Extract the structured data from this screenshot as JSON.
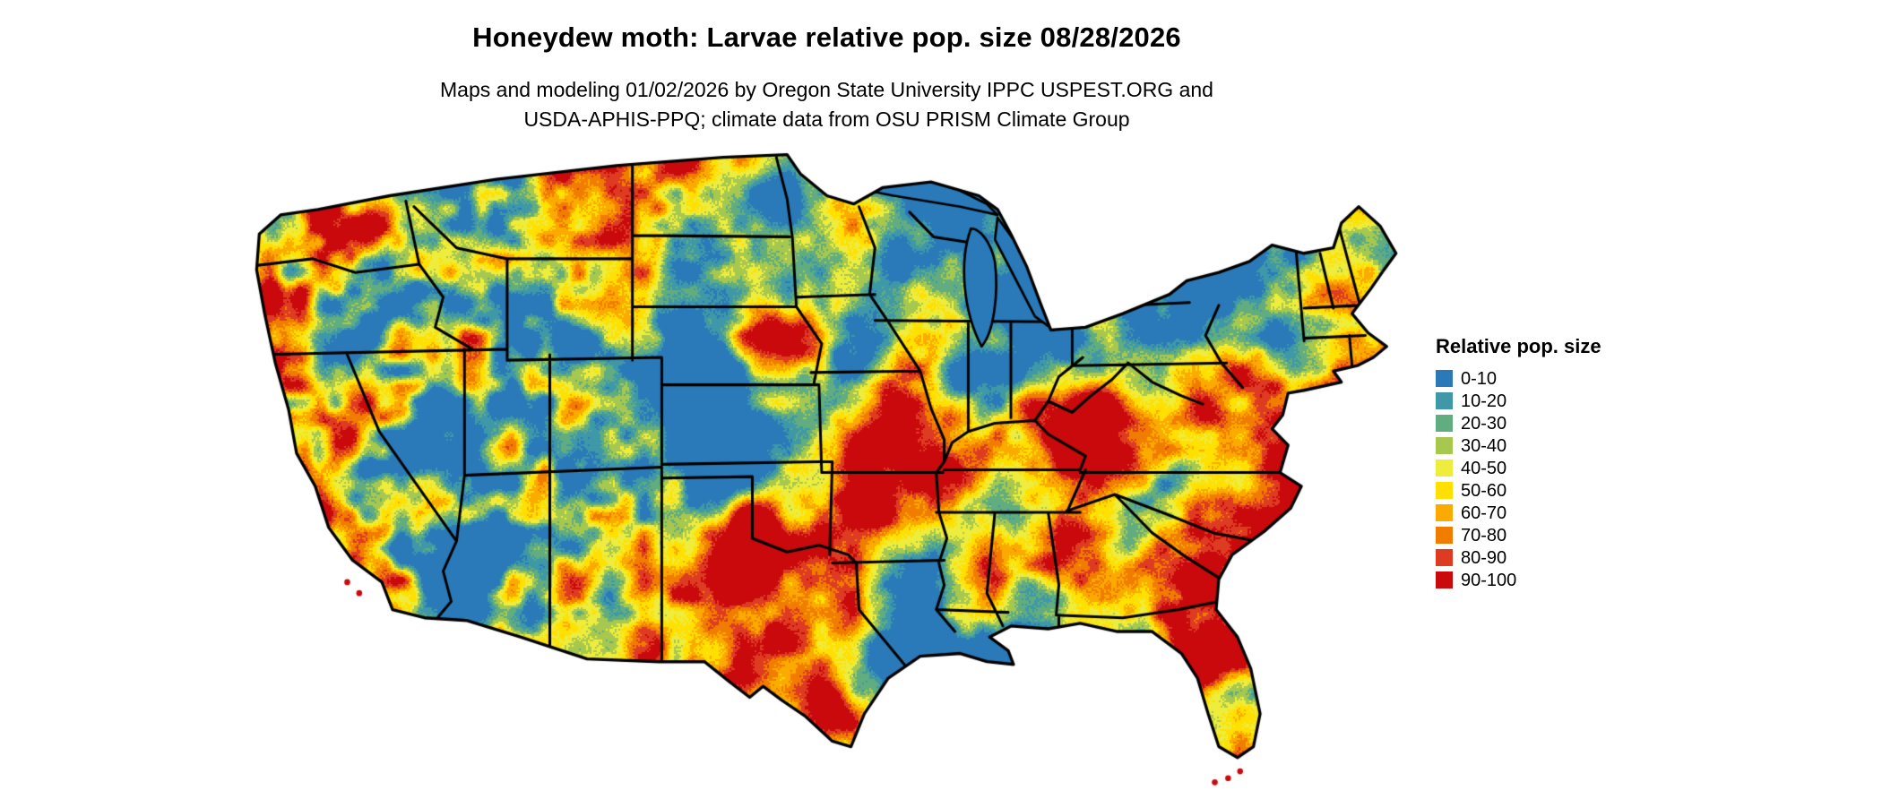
{
  "header": {
    "title": "Honeydew moth: Larvae relative pop. size 08/28/2026",
    "subtitle_line1": "Maps and modeling 01/02/2026 by Oregon State University IPPC USPEST.ORG and",
    "subtitle_line2": "USDA-APHIS-PPQ; climate data from OSU PRISM Climate Group"
  },
  "legend": {
    "title": "Relative pop. size",
    "items": [
      {
        "label": "0-10",
        "color": "#2a7ab9"
      },
      {
        "label": "10-20",
        "color": "#3e98a8"
      },
      {
        "label": "20-30",
        "color": "#61ad7f"
      },
      {
        "label": "30-40",
        "color": "#a6c84f"
      },
      {
        "label": "40-50",
        "color": "#eeec3c"
      },
      {
        "label": "50-60",
        "color": "#ffe000"
      },
      {
        "label": "60-70",
        "color": "#fbaa00"
      },
      {
        "label": "70-80",
        "color": "#f17d00"
      },
      {
        "label": "80-90",
        "color": "#de3b23"
      },
      {
        "label": "90-100",
        "color": "#c9090c"
      }
    ]
  },
  "map": {
    "region": "Continental United States",
    "kind": "relative population size raster with state boundaries"
  }
}
